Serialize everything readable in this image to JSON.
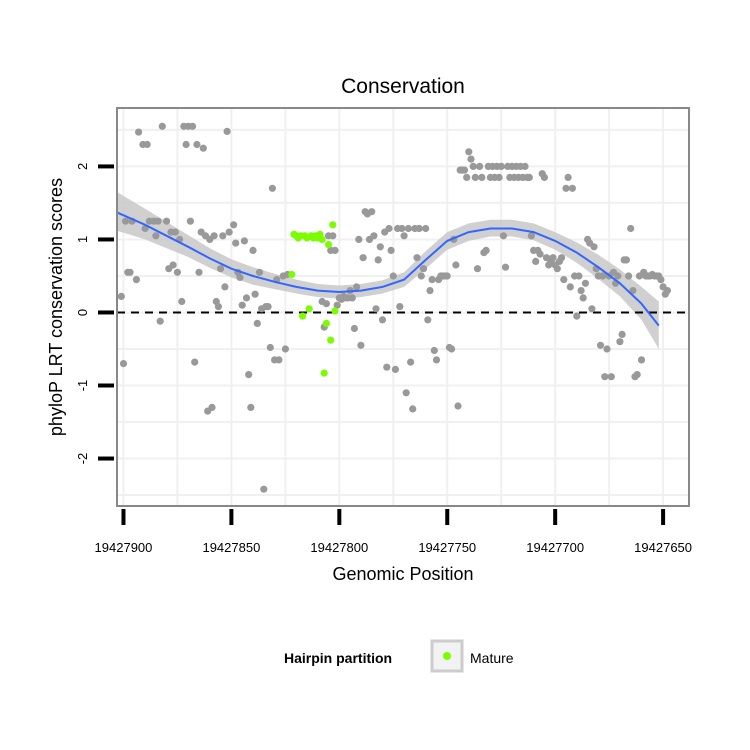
{
  "chart_data": {
    "type": "scatter",
    "title": "Conservation",
    "xlabel": "Genomic Position",
    "ylabel": "phyloP LRT conservation scores",
    "x_reversed": true,
    "xlim": [
      19427903,
      19427638
    ],
    "ylim": [
      -2.65,
      2.8
    ],
    "x_ticks": [
      19427900,
      19427850,
      19427800,
      19427750,
      19427700,
      19427650
    ],
    "x_tick_labels": [
      "19427900",
      "19427850",
      "19427800",
      "19427750",
      "19427700",
      "19427650"
    ],
    "y_ticks": [
      -2,
      -1,
      0,
      1,
      2
    ],
    "y_tick_labels": [
      "-2",
      "-1",
      "0",
      "1",
      "2"
    ],
    "reference_line": {
      "y": 0,
      "style": "dashed"
    },
    "colors": {
      "other": "#999999",
      "mature": "#7CFC00",
      "smooth": "#3366FF",
      "ribbon": "#c8c8c8",
      "panel_border": "#888888",
      "grid": "#f0f0f0"
    },
    "legend": {
      "title": "Hairpin partition",
      "entries": [
        {
          "label": "Mature",
          "color": "#7CFC00"
        }
      ],
      "position": "bottom"
    },
    "series": [
      {
        "name": "Other",
        "color": "#999999",
        "points": [
          [
            19427898,
            0.55
          ],
          [
            19427897,
            0.55
          ],
          [
            19427899,
            1.25
          ],
          [
            19427896,
            1.25
          ],
          [
            19427894,
            0.45
          ],
          [
            19427900,
            -0.7
          ],
          [
            19427901,
            0.22
          ],
          [
            19427893,
            2.47
          ],
          [
            19427891,
            2.3
          ],
          [
            19427889,
            2.3
          ],
          [
            19427890,
            1.15
          ],
          [
            19427888,
            1.25
          ],
          [
            19427886,
            1.25
          ],
          [
            19427885,
            1.05
          ],
          [
            19427884,
            1.25
          ],
          [
            19427883,
            -0.12
          ],
          [
            19427882,
            2.55
          ],
          [
            19427880,
            1.25
          ],
          [
            19427879,
            0.6
          ],
          [
            19427878,
            1.1
          ],
          [
            19427877,
            0.65
          ],
          [
            19427876,
            1.1
          ],
          [
            19427875,
            0.55
          ],
          [
            19427874,
            1.0
          ],
          [
            19427873,
            0.15
          ],
          [
            19427872,
            2.55
          ],
          [
            19427871,
            2.3
          ],
          [
            19427870,
            2.55
          ],
          [
            19427869,
            1.25
          ],
          [
            19427868,
            2.55
          ],
          [
            19427867,
            -0.68
          ],
          [
            19427866,
            2.3
          ],
          [
            19427865,
            0.55
          ],
          [
            19427864,
            1.1
          ],
          [
            19427863,
            2.25
          ],
          [
            19427862,
            1.05
          ],
          [
            19427861,
            -1.35
          ],
          [
            19427860,
            1.0
          ],
          [
            19427859,
            -1.3
          ],
          [
            19427858,
            1.05
          ],
          [
            19427857,
            0.15
          ],
          [
            19427856,
            0.08
          ],
          [
            19427855,
            0.6
          ],
          [
            19427854,
            1.05
          ],
          [
            19427853,
            0.35
          ],
          [
            19427852,
            2.48
          ],
          [
            19427851,
            1.1
          ],
          [
            19427849,
            1.2
          ],
          [
            19427848,
            0.95
          ],
          [
            19427847,
            0.55
          ],
          [
            19427846,
            0.48
          ],
          [
            19427845,
            0.1
          ],
          [
            19427844,
            0.98
          ],
          [
            19427843,
            0.2
          ],
          [
            19427842,
            -0.85
          ],
          [
            19427841,
            -1.3
          ],
          [
            19427840,
            0.85
          ],
          [
            19427839,
            0.25
          ],
          [
            19427838,
            -0.15
          ],
          [
            19427837,
            0.55
          ],
          [
            19427836,
            0.05
          ],
          [
            19427835,
            -2.42
          ],
          [
            19427834,
            0.08
          ],
          [
            19427833,
            0.08
          ],
          [
            19427832,
            -0.48
          ],
          [
            19427831,
            1.7
          ],
          [
            19427830,
            -0.65
          ],
          [
            19427829,
            0.45
          ],
          [
            19427828,
            -0.65
          ],
          [
            19427826,
            0.5
          ],
          [
            19427825,
            -0.5
          ],
          [
            19427824,
            0.52
          ],
          [
            19427808,
            0.15
          ],
          [
            19427807,
            -0.2
          ],
          [
            19427806,
            0.12
          ],
          [
            19427805,
            1.05
          ],
          [
            19427804,
            0.85
          ],
          [
            19427803,
            1.05
          ],
          [
            19427802,
            0.85
          ],
          [
            19427801,
            0.1
          ],
          [
            19427800,
            0.2
          ],
          [
            19427799,
            0.18
          ],
          [
            19427798,
            0.22
          ],
          [
            19427797,
            0.2
          ],
          [
            19427796,
            0.2
          ],
          [
            19427795,
            0.3
          ],
          [
            19427794,
            0.2
          ],
          [
            19427793,
            -0.22
          ],
          [
            19427792,
            0.35
          ],
          [
            19427791,
            1.0
          ],
          [
            19427790,
            -0.45
          ],
          [
            19427789,
            0.75
          ],
          [
            19427788,
            1.38
          ],
          [
            19427787,
            1.35
          ],
          [
            19427786,
            1.0
          ],
          [
            19427785,
            1.38
          ],
          [
            19427784,
            1.05
          ],
          [
            19427783,
            0.05
          ],
          [
            19427782,
            0.72
          ],
          [
            19427781,
            0.9
          ],
          [
            19427780,
            -0.1
          ],
          [
            19427779,
            1.1
          ],
          [
            19427778,
            -0.75
          ],
          [
            19427777,
            1.15
          ],
          [
            19427776,
            0.85
          ],
          [
            19427775,
            0.5
          ],
          [
            19427774,
            -0.78
          ],
          [
            19427773,
            1.15
          ],
          [
            19427772,
            0.08
          ],
          [
            19427771,
            1.15
          ],
          [
            19427770,
            1.05
          ],
          [
            19427769,
            -1.1
          ],
          [
            19427768,
            1.15
          ],
          [
            19427767,
            -0.68
          ],
          [
            19427766,
            -1.32
          ],
          [
            19427765,
            1.15
          ],
          [
            19427764,
            0.75
          ],
          [
            19427763,
            1.15
          ],
          [
            19427762,
            0.5
          ],
          [
            19427761,
            0.6
          ],
          [
            19427760,
            1.15
          ],
          [
            19427759,
            -0.1
          ],
          [
            19427758,
            0.3
          ],
          [
            19427757,
            0.45
          ],
          [
            19427756,
            -0.52
          ],
          [
            19427755,
            -0.65
          ],
          [
            19427754,
            0.45
          ],
          [
            19427753,
            0.5
          ],
          [
            19427752,
            0.5
          ],
          [
            19427751,
            0.5
          ],
          [
            19427750,
            0.5
          ],
          [
            19427749,
            -0.48
          ],
          [
            19427748,
            -0.5
          ],
          [
            19427747,
            1.0
          ],
          [
            19427746,
            0.65
          ],
          [
            19427745,
            -1.28
          ],
          [
            19427744,
            1.95
          ],
          [
            19427743,
            1.95
          ],
          [
            19427742,
            1.95
          ],
          [
            19427741,
            1.85
          ],
          [
            19427740,
            2.2
          ],
          [
            19427739,
            2.1
          ],
          [
            19427738,
            2.0
          ],
          [
            19427737,
            1.85
          ],
          [
            19427736,
            0.6
          ],
          [
            19427735,
            2.0
          ],
          [
            19427734,
            1.85
          ],
          [
            19427733,
            0.82
          ],
          [
            19427732,
            0.85
          ],
          [
            19427731,
            2.0
          ],
          [
            19427730,
            1.85
          ],
          [
            19427729,
            2.0
          ],
          [
            19427728,
            1.85
          ],
          [
            19427727,
            2.0
          ],
          [
            19427726,
            1.85
          ],
          [
            19427725,
            2.0
          ],
          [
            19427724,
            1.05
          ],
          [
            19427723,
            0.62
          ],
          [
            19427722,
            2.0
          ],
          [
            19427721,
            1.85
          ],
          [
            19427720,
            2.0
          ],
          [
            19427719,
            1.85
          ],
          [
            19427718,
            2.0
          ],
          [
            19427717,
            1.85
          ],
          [
            19427716,
            2.0
          ],
          [
            19427715,
            1.85
          ],
          [
            19427714,
            2.0
          ],
          [
            19427713,
            1.85
          ],
          [
            19427712,
            1.85
          ],
          [
            19427711,
            1.05
          ],
          [
            19427710,
            0.85
          ],
          [
            19427709,
            0.7
          ],
          [
            19427708,
            0.85
          ],
          [
            19427707,
            0.8
          ],
          [
            19427706,
            1.9
          ],
          [
            19427705,
            1.85
          ],
          [
            19427704,
            0.75
          ],
          [
            19427703,
            0.65
          ],
          [
            19427702,
            0.7
          ],
          [
            19427701,
            0.75
          ],
          [
            19427700,
            0.65
          ],
          [
            19427699,
            0.6
          ],
          [
            19427698,
            0.7
          ],
          [
            19427697,
            0.75
          ],
          [
            19427696,
            0.45
          ],
          [
            19427695,
            1.7
          ],
          [
            19427694,
            1.85
          ],
          [
            19427693,
            0.35
          ],
          [
            19427692,
            1.7
          ],
          [
            19427691,
            0.5
          ],
          [
            19427690,
            -0.05
          ],
          [
            19427689,
            0.5
          ],
          [
            19427688,
            0.3
          ],
          [
            19427687,
            0.2
          ],
          [
            19427686,
            0.4
          ],
          [
            19427685,
            1.0
          ],
          [
            19427684,
            0.95
          ],
          [
            19427683,
            0.05
          ],
          [
            19427682,
            0.9
          ],
          [
            19427681,
            0.6
          ],
          [
            19427680,
            0.5
          ],
          [
            19427679,
            -0.45
          ],
          [
            19427678,
            0.5
          ],
          [
            19427677,
            -0.88
          ],
          [
            19427676,
            -0.5
          ],
          [
            19427675,
            0.5
          ],
          [
            19427674,
            -0.88
          ],
          [
            19427673,
            0.55
          ],
          [
            19427672,
            0.4
          ],
          [
            19427671,
            0.5
          ],
          [
            19427670,
            -0.4
          ],
          [
            19427669,
            -0.3
          ],
          [
            19427668,
            0.72
          ],
          [
            19427667,
            0.72
          ],
          [
            19427666,
            0.5
          ],
          [
            19427665,
            1.15
          ],
          [
            19427664,
            0.3
          ],
          [
            19427663,
            -0.88
          ],
          [
            19427662,
            -0.85
          ],
          [
            19427661,
            0.5
          ],
          [
            19427660,
            -0.65
          ],
          [
            19427659,
            0.55
          ],
          [
            19427658,
            0.5
          ],
          [
            19427657,
            0.5
          ],
          [
            19427656,
            0.5
          ],
          [
            19427655,
            0.52
          ],
          [
            19427654,
            0.5
          ],
          [
            19427653,
            0.5
          ],
          [
            19427652,
            0.5
          ],
          [
            19427651,
            0.45
          ],
          [
            19427650,
            0.35
          ],
          [
            19427649,
            0.25
          ],
          [
            19427648,
            0.3
          ]
        ]
      },
      {
        "name": "Mature",
        "color": "#7CFC00",
        "points": [
          [
            19427822,
            0.52
          ],
          [
            19427821,
            1.07
          ],
          [
            19427820,
            1.05
          ],
          [
            19427819,
            1.02
          ],
          [
            19427818,
            1.05
          ],
          [
            19427817,
            -0.05
          ],
          [
            19427816,
            1.05
          ],
          [
            19427815,
            1.02
          ],
          [
            19427814,
            0.05
          ],
          [
            19427813,
            1.05
          ],
          [
            19427812,
            1.02
          ],
          [
            19427811,
            1.05
          ],
          [
            19427810,
            1.02
          ],
          [
            19427809,
            1.07
          ],
          [
            19427808,
            1.0
          ],
          [
            19427807,
            -0.83
          ],
          [
            19427806,
            -0.15
          ],
          [
            19427805,
            0.93
          ],
          [
            19427804,
            -0.38
          ],
          [
            19427803,
            1.2
          ],
          [
            19427802,
            0.02
          ]
        ]
      }
    ],
    "smooth": {
      "method": "loess",
      "x": [
        19427903,
        19427890,
        19427880,
        19427870,
        19427860,
        19427850,
        19427840,
        19427830,
        19427820,
        19427810,
        19427800,
        19427790,
        19427780,
        19427770,
        19427760,
        19427750,
        19427740,
        19427730,
        19427720,
        19427710,
        19427700,
        19427690,
        19427680,
        19427670,
        19427660,
        19427652
      ],
      "y": [
        1.37,
        1.2,
        1.05,
        0.9,
        0.74,
        0.6,
        0.5,
        0.42,
        0.35,
        0.3,
        0.28,
        0.3,
        0.35,
        0.45,
        0.72,
        0.98,
        1.1,
        1.15,
        1.15,
        1.1,
        0.98,
        0.82,
        0.62,
        0.4,
        0.12,
        -0.18
      ],
      "se_lower": [
        1.12,
        1.0,
        0.88,
        0.76,
        0.61,
        0.48,
        0.38,
        0.32,
        0.26,
        0.21,
        0.19,
        0.21,
        0.26,
        0.35,
        0.6,
        0.86,
        0.98,
        1.04,
        1.04,
        0.99,
        0.86,
        0.68,
        0.46,
        0.22,
        -0.1,
        -0.5
      ],
      "se_upper": [
        1.65,
        1.42,
        1.24,
        1.06,
        0.88,
        0.73,
        0.62,
        0.53,
        0.45,
        0.39,
        0.37,
        0.39,
        0.44,
        0.55,
        0.84,
        1.1,
        1.22,
        1.27,
        1.27,
        1.22,
        1.1,
        0.96,
        0.79,
        0.59,
        0.35,
        0.15
      ]
    }
  }
}
